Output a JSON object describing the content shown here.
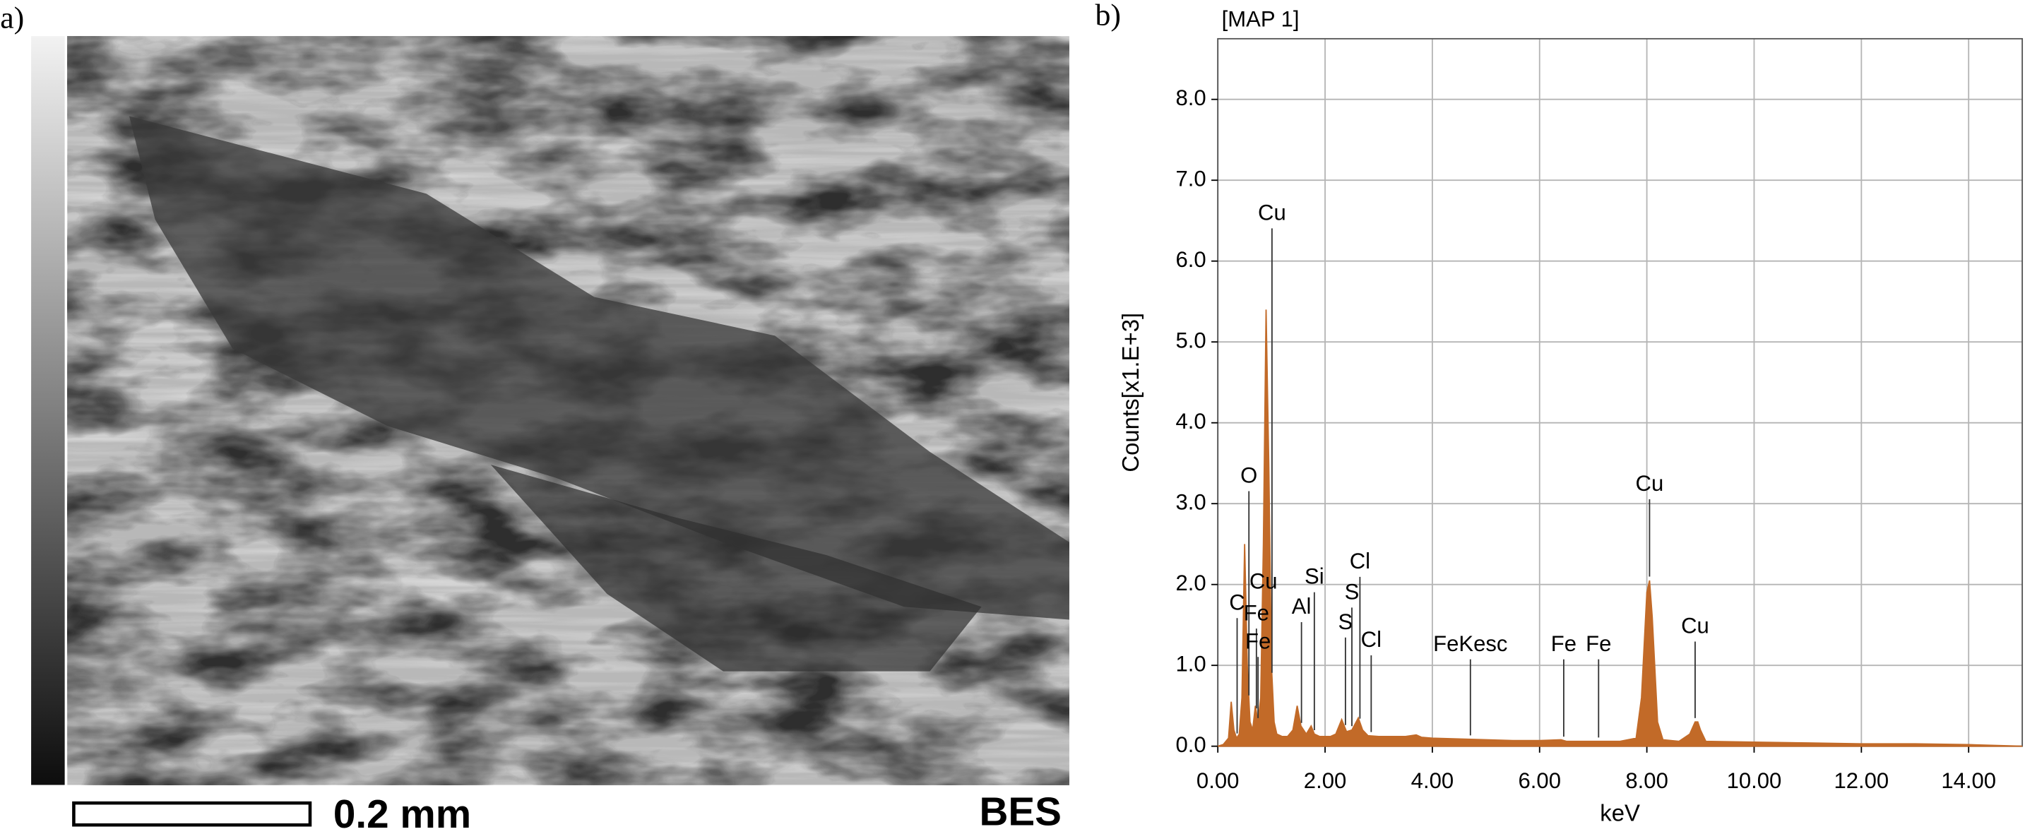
{
  "panels": {
    "a": {
      "label": "a)",
      "scale_bar": "0.2 mm",
      "mode": "BES"
    },
    "b": {
      "label": "b)"
    }
  },
  "chart_data": {
    "type": "area",
    "title": "[MAP 1]",
    "x_label": "keV",
    "y_label": "Counts[x1.E+3]",
    "color": "#c26a28",
    "grid": true,
    "xlim": [
      0,
      15
    ],
    "ylim": [
      0,
      8.75
    ],
    "xticks": [
      {
        "value": 0,
        "label": "0.00"
      },
      {
        "value": 2,
        "label": "2.00"
      },
      {
        "value": 4,
        "label": "4.00"
      },
      {
        "value": 6,
        "label": "6.00"
      },
      {
        "value": 8,
        "label": "8.00"
      },
      {
        "value": 10,
        "label": "10.00"
      },
      {
        "value": 12,
        "label": "12.00"
      },
      {
        "value": 14,
        "label": "14.00"
      }
    ],
    "yticks": [
      {
        "value": 0,
        "label": "0.0"
      },
      {
        "value": 1,
        "label": "1.0"
      },
      {
        "value": 2,
        "label": "2.0"
      },
      {
        "value": 3,
        "label": "3.0"
      },
      {
        "value": 4,
        "label": "4.0"
      },
      {
        "value": 5,
        "label": "5.0"
      },
      {
        "value": 6,
        "label": "6.0"
      },
      {
        "value": 7,
        "label": "7.0"
      },
      {
        "value": 8,
        "label": "8.0"
      }
    ],
    "x": [
      0,
      0.1,
      0.2,
      0.25,
      0.3,
      0.35,
      0.4,
      0.45,
      0.5,
      0.55,
      0.6,
      0.65,
      0.7,
      0.75,
      0.8,
      0.85,
      0.9,
      0.95,
      1.0,
      1.05,
      1.1,
      1.2,
      1.3,
      1.4,
      1.48,
      1.55,
      1.65,
      1.74,
      1.8,
      1.9,
      2.0,
      2.1,
      2.2,
      2.31,
      2.4,
      2.5,
      2.62,
      2.7,
      2.8,
      3.0,
      3.5,
      3.7,
      3.8,
      4.0,
      4.5,
      5.0,
      5.5,
      6.0,
      6.4,
      6.5,
      7.0,
      7.5,
      7.8,
      7.9,
      8.0,
      8.05,
      8.1,
      8.2,
      8.3,
      8.6,
      8.8,
      8.9,
      8.95,
      9.0,
      9.1,
      10.0,
      11.0,
      12.0,
      13.0,
      14.0,
      15.0
    ],
    "values": [
      0,
      0.02,
      0.1,
      0.55,
      0.2,
      0.1,
      0.15,
      0.6,
      2.5,
      1.0,
      0.3,
      0.2,
      0.5,
      0.3,
      0.6,
      2.5,
      5.4,
      3.5,
      1.0,
      0.3,
      0.15,
      0.12,
      0.12,
      0.2,
      0.5,
      0.25,
      0.15,
      0.25,
      0.15,
      0.12,
      0.12,
      0.12,
      0.15,
      0.33,
      0.18,
      0.2,
      0.35,
      0.2,
      0.13,
      0.12,
      0.12,
      0.14,
      0.11,
      0.1,
      0.09,
      0.08,
      0.07,
      0.07,
      0.08,
      0.06,
      0.06,
      0.06,
      0.1,
      0.6,
      1.9,
      2.05,
      1.6,
      0.3,
      0.08,
      0.06,
      0.15,
      0.3,
      0.3,
      0.2,
      0.06,
      0.05,
      0.04,
      0.03,
      0.03,
      0.02,
      0
    ],
    "annotations": [
      {
        "text": "Cu",
        "x": 1.01,
        "y": 6.58
      },
      {
        "text": "O",
        "x": 0.58,
        "y": 3.33
      },
      {
        "text": "C",
        "x": 0.36,
        "y": 1.76
      },
      {
        "text": "Cu",
        "x": 0.85,
        "y": 2.02
      },
      {
        "text": "Fe",
        "x": 0.72,
        "y": 1.63
      },
      {
        "text": "Fe",
        "x": 0.75,
        "y": 1.28
      },
      {
        "text": "Al",
        "x": 1.56,
        "y": 1.71
      },
      {
        "text": "Si",
        "x": 1.8,
        "y": 2.08
      },
      {
        "text": "S",
        "x": 2.38,
        "y": 1.52
      },
      {
        "text": "S",
        "x": 2.5,
        "y": 1.89
      },
      {
        "text": "Cl",
        "x": 2.65,
        "y": 2.27
      },
      {
        "text": "Cl",
        "x": 2.86,
        "y": 1.3
      },
      {
        "text": "FeKesc",
        "x": 4.71,
        "y": 1.25
      },
      {
        "text": "Fe",
        "x": 6.45,
        "y": 1.25
      },
      {
        "text": "Fe",
        "x": 7.1,
        "y": 1.25
      },
      {
        "text": "Cu",
        "x": 8.05,
        "y": 3.23
      },
      {
        "text": "Cu",
        "x": 8.9,
        "y": 1.47
      }
    ]
  }
}
